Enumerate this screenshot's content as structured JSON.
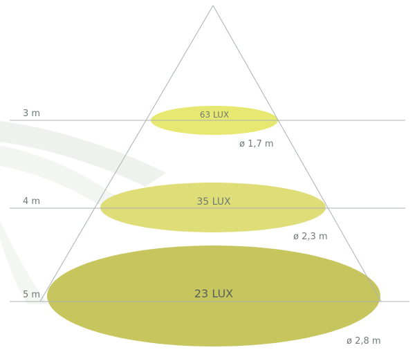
{
  "levels": [
    {
      "distance": "3 m",
      "lux": "63 LUX",
      "diameter": "ø 1,7 m",
      "color": "#e6e871"
    },
    {
      "distance": "4 m",
      "lux": "35 LUX",
      "diameter": "ø 2,3 m",
      "color": "#dedd78"
    },
    {
      "distance": "5 m",
      "lux": "23 LUX",
      "diameter": "ø 2,8 m",
      "color": "#c7c65e"
    }
  ],
  "colors": {
    "line": "#a8b0b0",
    "text": "#6f7a7a",
    "swoosh": "#edf1ee"
  }
}
